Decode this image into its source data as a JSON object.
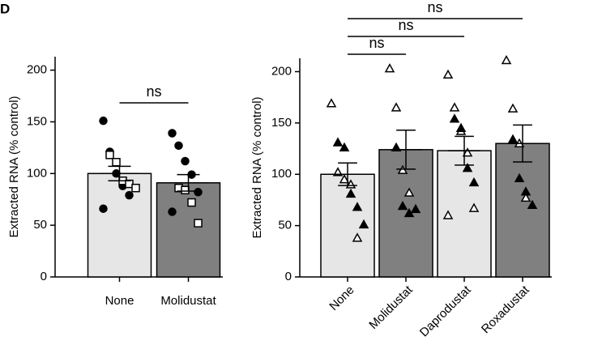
{
  "panel_label": "D",
  "chart_data": [
    {
      "type": "bar",
      "y_label": "Extracted RNA (% control)",
      "categories": [
        "None",
        "Molidustat"
      ],
      "values": [
        100,
        91
      ],
      "errors": [
        7,
        8
      ],
      "colors": [
        "#e6e6e6",
        "#808080"
      ],
      "ylim": [
        0,
        213
      ],
      "yticks": [
        0,
        50,
        100,
        150,
        200
      ],
      "point_groups": [
        {
          "marker": "circle",
          "filled": true,
          "values": [
            [
              151,
              121,
              100,
              88,
              79,
              66
            ],
            [
              139,
              127,
              112,
              99,
              82,
              63
            ]
          ]
        },
        {
          "marker": "square",
          "filled": false,
          "values": [
            [
              118,
              111,
              93,
              90,
              86
            ],
            [
              86,
              84,
              72,
              52
            ]
          ]
        }
      ],
      "comparisons": [
        {
          "from": 0,
          "to": 1,
          "label": "ns"
        }
      ]
    },
    {
      "type": "bar",
      "y_label": "Extracted RNA (% control)",
      "categories": [
        "None",
        "Molidustat",
        "Daprodustat",
        "Roxadustat"
      ],
      "values": [
        100,
        124,
        123,
        130
      ],
      "errors": [
        11,
        19,
        14,
        18
      ],
      "colors": [
        "#e6e6e6",
        "#808080",
        "#e6e6e6",
        "#808080"
      ],
      "ylim": [
        0,
        213
      ],
      "yticks": [
        0,
        50,
        100,
        150,
        200
      ],
      "point_groups": [
        {
          "marker": "triangle",
          "filled": false,
          "values": [
            [
              169,
              102,
              95,
              90,
              38
            ],
            [
              203,
              165,
              104,
              82
            ],
            [
              197,
              165,
              142,
              121,
              67,
              60
            ],
            [
              211,
              164,
              130,
              77
            ]
          ]
        },
        {
          "marker": "triangle",
          "filled": true,
          "values": [
            [
              131,
              126,
              81,
              68,
              51
            ],
            [
              126,
              69,
              62,
              66
            ],
            [
              154,
              145,
              106,
              92
            ],
            [
              134,
              96,
              83,
              70
            ]
          ]
        }
      ],
      "comparisons": [
        {
          "from": 0,
          "to": 1,
          "label": "ns"
        },
        {
          "from": 0,
          "to": 2,
          "label": "ns"
        },
        {
          "from": 0,
          "to": 3,
          "label": "ns"
        }
      ]
    }
  ]
}
